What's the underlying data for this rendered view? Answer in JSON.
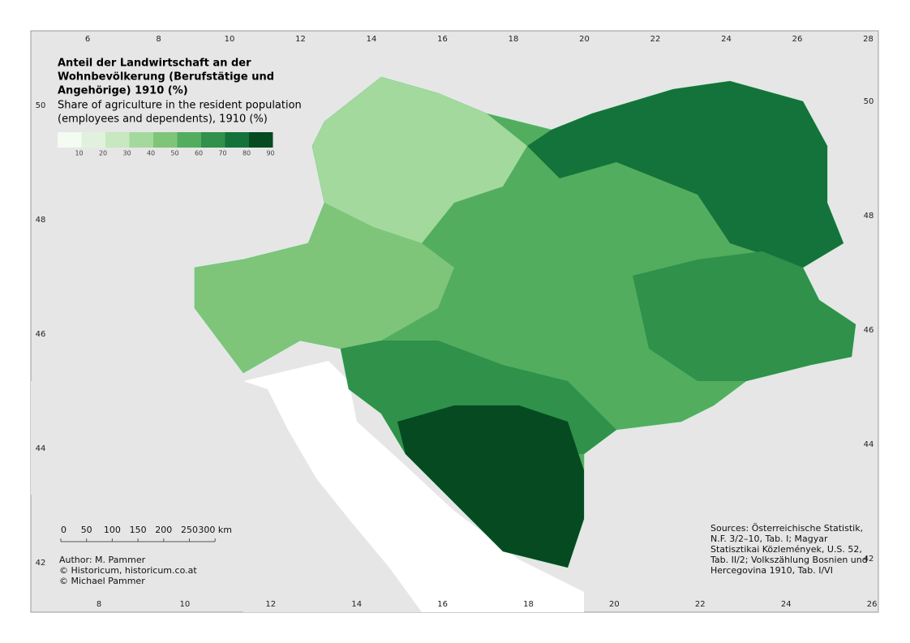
{
  "title": [
    "Anteil der Landwirtschaft an der",
    "Wohnbevölkerung (Berufstätige und",
    "Angehörige) 1910 (%)"
  ],
  "subtitle": [
    "Share of agriculture in the resident population",
    "(employees and dependents), 1910 (%)"
  ],
  "legend": {
    "colors": [
      "#f4fbf1",
      "#e1f2dc",
      "#c7e8c0",
      "#a4d99d",
      "#7ec57a",
      "#53ad5f",
      "#2f914a",
      "#14733a",
      "#064a22"
    ],
    "labels": [
      10,
      20,
      30,
      40,
      50,
      60,
      70,
      80,
      90
    ]
  },
  "scale_bar": {
    "labels": [
      "0",
      "50",
      "100",
      "150",
      "200",
      "250",
      "300 km"
    ]
  },
  "credits": [
    "Author: M. Pammer",
    "© Historicum, historicum.co.at",
    "© Michael Pammer"
  ],
  "sources": [
    "Sources: Österreichische Statistik,",
    "N.F. 3/2–10, Tab. I; Magyar",
    "Statisztikai Közlemények, U.S. 52,",
    "Tab. II/2; Volkszählung Bosnien und",
    "Hercegovina 1910, Tab. I/VI"
  ],
  "frame": {
    "top_ticks": [
      6,
      8,
      10,
      12,
      14,
      16,
      18,
      20,
      22,
      24,
      26,
      28
    ],
    "bottom_ticks": [
      8,
      10,
      12,
      14,
      16,
      18,
      20,
      22,
      24,
      26
    ],
    "left_ticks": [
      50,
      48,
      46,
      44,
      42
    ],
    "right_ticks": [
      50,
      48,
      46,
      44,
      42
    ]
  }
}
